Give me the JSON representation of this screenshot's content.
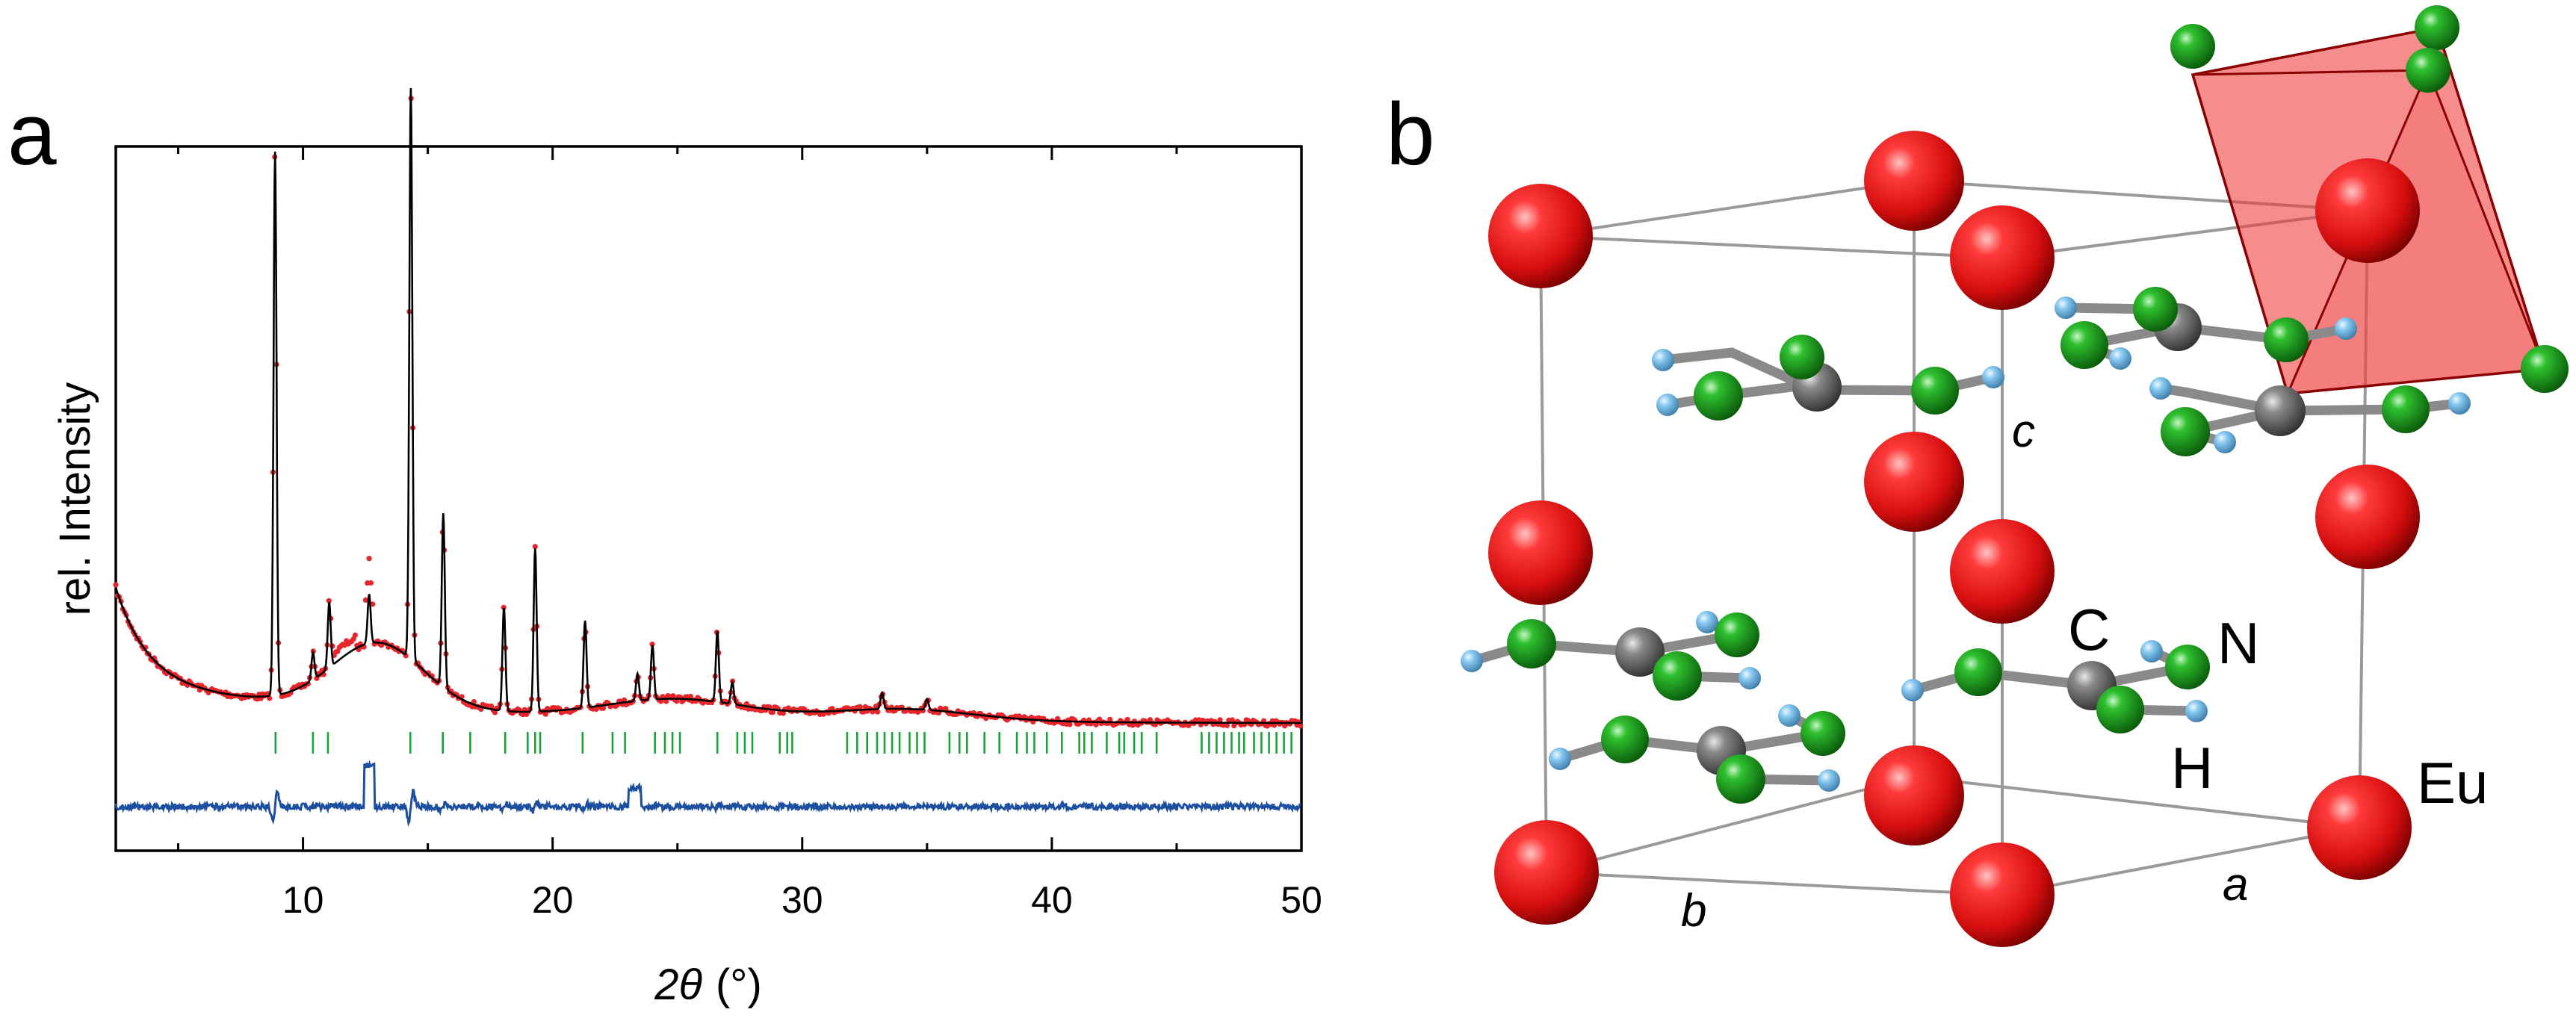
{
  "panel_a": {
    "label": "a",
    "chart_data": {
      "type": "line",
      "xlabel_symbol": "2θ",
      "xlabel_unit": "(°)",
      "ylabel": "rel. Intensity",
      "xlim": [
        2.5,
        50
      ],
      "xticks": [
        10,
        20,
        30,
        40,
        50
      ],
      "y_ticks_labeled": false,
      "grid": false,
      "legend": "none",
      "background": 0.28,
      "peaks": [
        {
          "x": 8.88,
          "y": 1.0
        },
        {
          "x": 10.4,
          "y": 0.05
        },
        {
          "x": 11.05,
          "y": 0.12
        },
        {
          "x": 12.65,
          "y": 0.09
        },
        {
          "x": 14.32,
          "y": 1.05
        },
        {
          "x": 15.62,
          "y": 0.32
        },
        {
          "x": 18.05,
          "y": 0.19
        },
        {
          "x": 19.3,
          "y": 0.3
        },
        {
          "x": 21.3,
          "y": 0.16
        },
        {
          "x": 23.4,
          "y": 0.05
        },
        {
          "x": 24.0,
          "y": 0.1
        },
        {
          "x": 26.6,
          "y": 0.13
        },
        {
          "x": 27.2,
          "y": 0.04
        },
        {
          "x": 33.2,
          "y": 0.03
        },
        {
          "x": 35.0,
          "y": 0.02
        }
      ],
      "series": [
        {
          "role": "observed",
          "color": "#e8252a"
        },
        {
          "role": "calculated",
          "color": "#000000"
        },
        {
          "role": "difference",
          "color": "#1c4fa0"
        },
        {
          "role": "reflection-markers",
          "color": "#1aa33a"
        }
      ],
      "reflection_positions": [
        8.9,
        10.4,
        11.0,
        14.3,
        15.6,
        16.7,
        18.1,
        19.0,
        19.3,
        19.5,
        21.2,
        22.4,
        22.9,
        24.1,
        24.5,
        24.8,
        25.1,
        26.6,
        27.4,
        27.7,
        28.0,
        29.1,
        29.4,
        29.6,
        31.8,
        32.2,
        32.6,
        33.0,
        33.3,
        33.6,
        33.9,
        34.3,
        34.6,
        34.9,
        35.9,
        36.3,
        36.6,
        37.3,
        37.9,
        38.6,
        39.0,
        39.3,
        39.8,
        40.4,
        41.1,
        41.3,
        41.6,
        42.2,
        42.7,
        42.9,
        43.3,
        43.6,
        44.2,
        46.0,
        46.3,
        46.6,
        46.9,
        47.2,
        47.5,
        47.7,
        48.1,
        48.4,
        48.7,
        49.0,
        49.3,
        49.6
      ]
    }
  },
  "panel_b": {
    "label": "b",
    "atom_labels": {
      "carbon": "C",
      "nitrogen": "N",
      "hydrogen": "H",
      "europium": "Eu"
    },
    "cell_axes": {
      "a": "a",
      "b": "b",
      "c": "c"
    },
    "colors": {
      "europium": "#e81818",
      "nitrogen": "#1aa31a",
      "carbon": "#7a7a7a",
      "hydrogen": "#7ec4ee",
      "polyhedron": "#ee3a3a",
      "cell_edge": "#9a9a9a",
      "bond": "#8a8a8a"
    }
  }
}
